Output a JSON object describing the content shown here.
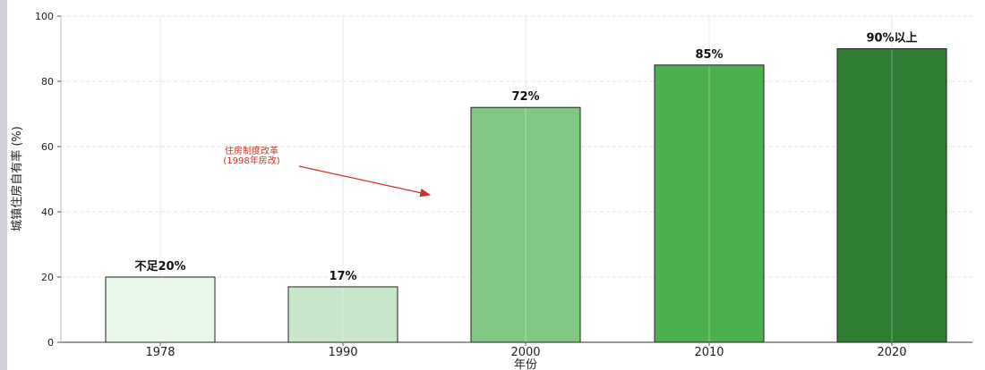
{
  "chart_data": {
    "type": "bar",
    "categories": [
      "1978",
      "1990",
      "2000",
      "2010",
      "2020"
    ],
    "values": [
      20,
      17,
      72,
      85,
      90
    ],
    "data_labels": [
      "不足20%",
      "17%",
      "72%",
      "85%",
      "90%以上"
    ],
    "bar_colors": [
      "#e8f5e9",
      "#c8e6c9",
      "#81c784",
      "#4caf50",
      "#2e7d32"
    ],
    "title": "",
    "xlabel": "年份",
    "ylabel": "城镇住房自有率 (%)",
    "ylim": [
      0,
      100
    ],
    "yticks": [
      0,
      20,
      40,
      60,
      80,
      100
    ],
    "grid": true,
    "annotation": {
      "lines": [
        "住房制度改革",
        "(1998年房改)"
      ],
      "color": "#d32f2f"
    }
  }
}
